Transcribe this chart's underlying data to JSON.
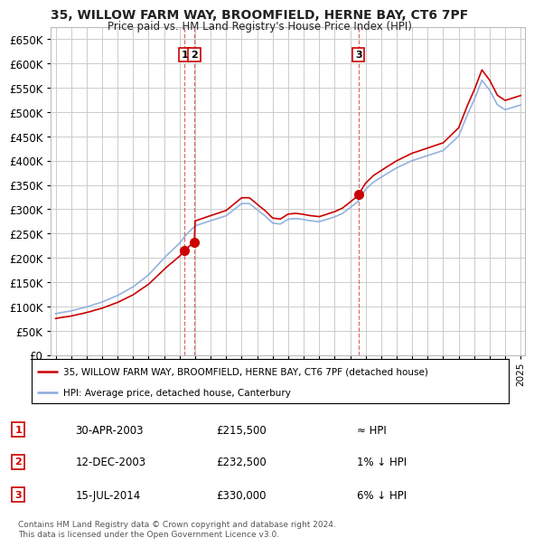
{
  "title": "35, WILLOW FARM WAY, BROOMFIELD, HERNE BAY, CT6 7PF",
  "subtitle": "Price paid vs. HM Land Registry's House Price Index (HPI)",
  "property_label": "35, WILLOW FARM WAY, BROOMFIELD, HERNE BAY, CT6 7PF (detached house)",
  "hpi_label": "HPI: Average price, detached house, Canterbury",
  "property_color": "#cc0000",
  "hpi_color": "#88aadd",
  "transactions": [
    {
      "num": 1,
      "date": "30-APR-2003",
      "price": 215500,
      "rel": "≈ HPI",
      "x_year": 2003.33
    },
    {
      "num": 2,
      "date": "12-DEC-2003",
      "price": 232500,
      "rel": "1% ↓ HPI",
      "x_year": 2003.95
    },
    {
      "num": 3,
      "date": "15-JUL-2014",
      "price": 330000,
      "rel": "6% ↓ HPI",
      "x_year": 2014.54
    }
  ],
  "footer": "Contains HM Land Registry data © Crown copyright and database right 2024.\nThis data is licensed under the Open Government Licence v3.0.",
  "ylim": [
    0,
    675000
  ],
  "yticks": [
    0,
    50000,
    100000,
    150000,
    200000,
    250000,
    300000,
    350000,
    400000,
    450000,
    500000,
    550000,
    600000,
    650000
  ],
  "xlim_start": 1994.7,
  "xlim_end": 2025.3,
  "background_color": "#ffffff",
  "grid_color": "#cccccc"
}
